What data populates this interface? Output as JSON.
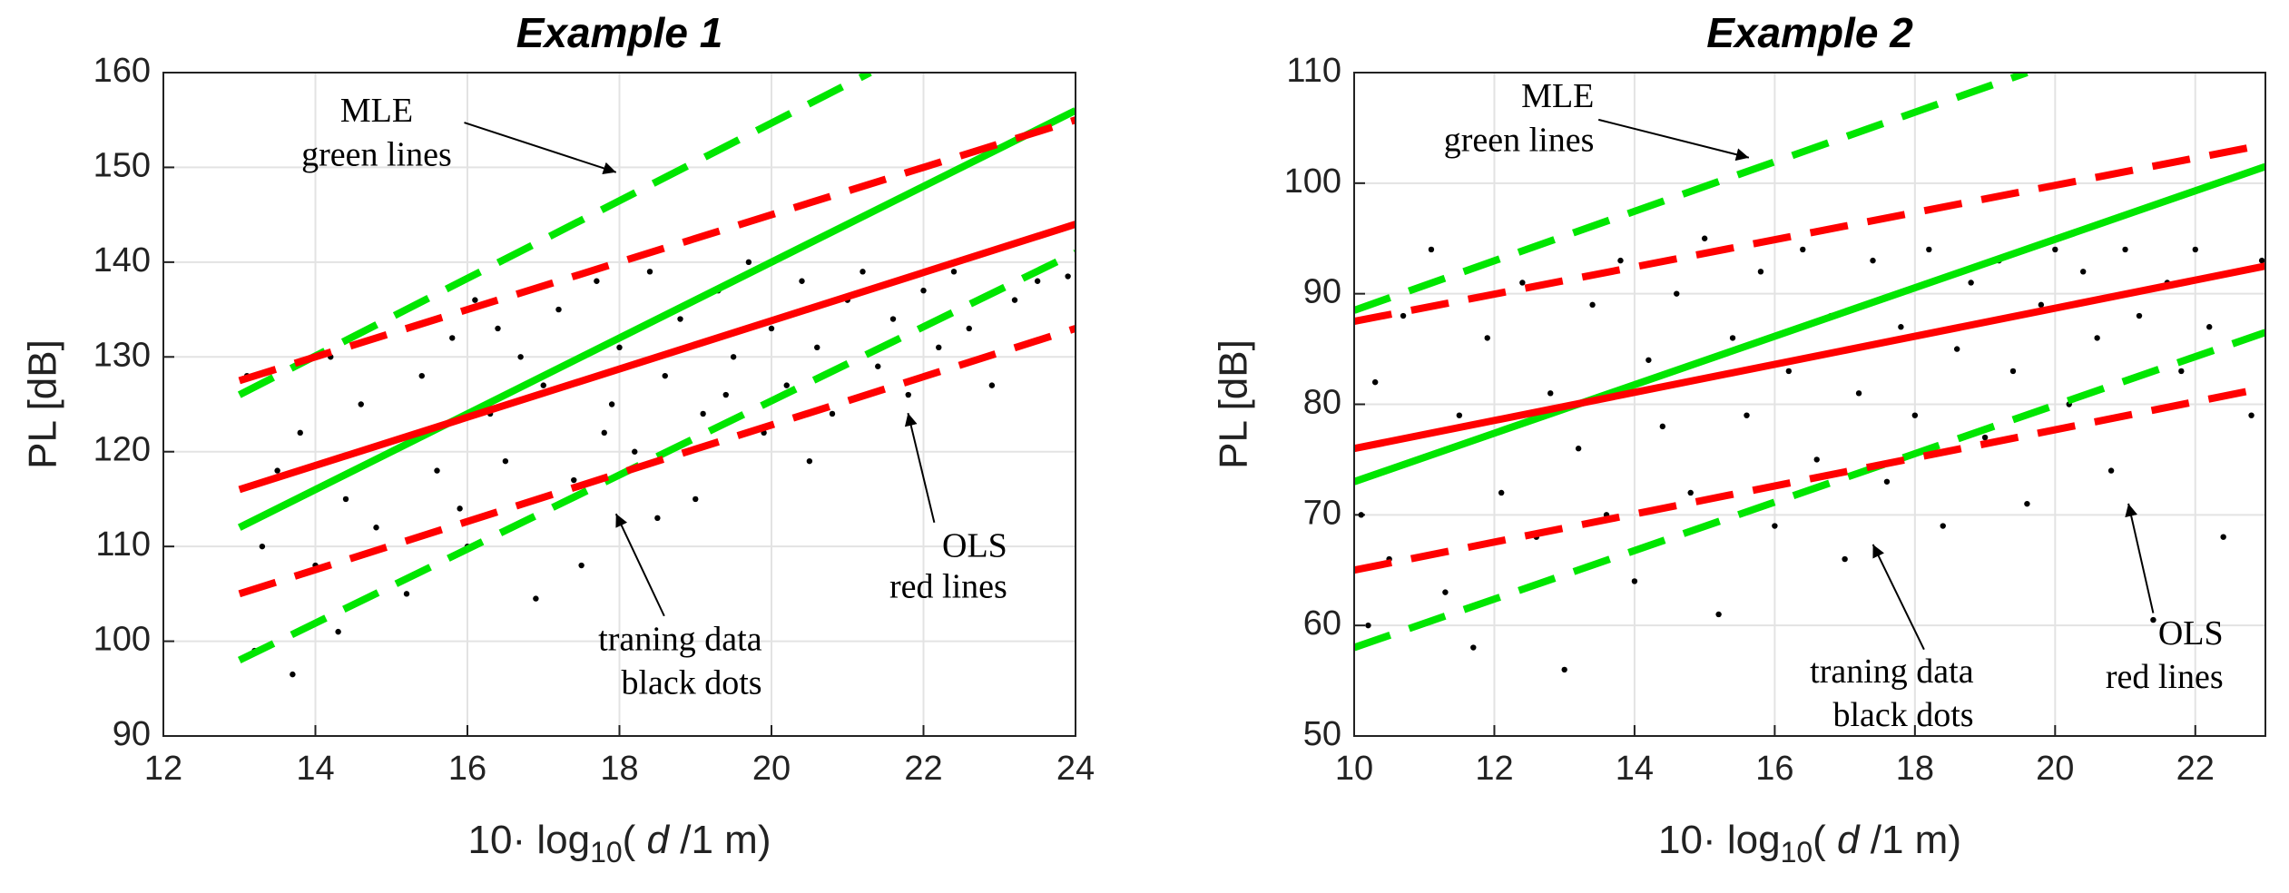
{
  "chart_data": [
    {
      "type": "scatter",
      "title": "Example 1",
      "y_label": "PL [dB]",
      "x_label_parts": [
        "10· log",
        "10",
        "( ",
        "d",
        " /1 m)"
      ],
      "xlim": [
        12,
        24
      ],
      "xticks": [
        12,
        14,
        16,
        18,
        20,
        22,
        24
      ],
      "ylim": [
        90,
        160
      ],
      "yticks": [
        90,
        100,
        110,
        120,
        130,
        140,
        150,
        160
      ],
      "grid": true,
      "annotations": [
        [
          "MLE",
          "green lines"
        ],
        [
          "traning data",
          "black dots"
        ],
        [
          "OLS",
          "red lines"
        ]
      ],
      "series": [
        {
          "type": "scatter",
          "color": "#000000",
          "x": [
            13.1,
            13.2,
            13.3,
            13.5,
            13.7,
            13.8,
            14.0,
            14.2,
            14.4,
            14.6,
            14.8,
            15.0,
            15.2,
            15.4,
            15.6,
            15.8,
            16.0,
            16.1,
            16.3,
            16.5,
            16.7,
            16.9,
            17.0,
            17.2,
            17.4,
            17.5,
            17.7,
            17.9,
            18.0,
            18.2,
            18.4,
            18.6,
            18.8,
            19.0,
            19.1,
            19.3,
            19.5,
            19.7,
            19.9,
            20.0,
            20.2,
            20.4,
            20.6,
            20.8,
            21.0,
            21.2,
            21.4,
            21.6,
            21.8,
            22.0,
            22.2,
            22.4,
            22.6,
            22.9,
            23.2,
            23.5,
            23.9,
            20.5,
            18.5,
            17.8,
            19.4,
            15.9,
            14.3,
            16.4
          ],
          "values": [
            128,
            99,
            110,
            118,
            96.5,
            122,
            108,
            130,
            115,
            125,
            112,
            120,
            105,
            128,
            118,
            132,
            110,
            136,
            124,
            119,
            130,
            104.5,
            127,
            135,
            117,
            108,
            138,
            125,
            131,
            120,
            139,
            128,
            134,
            115,
            124,
            137,
            130,
            140,
            122,
            133,
            127,
            138,
            131,
            124,
            136,
            139,
            129,
            134,
            126,
            137,
            131,
            139,
            133,
            127,
            136,
            138,
            138.5,
            119,
            113,
            122,
            126,
            114,
            101,
            133
          ]
        },
        {
          "type": "line",
          "color": "#00e600",
          "dash": false,
          "x": [
            13,
            24
          ],
          "values": [
            112,
            156
          ]
        },
        {
          "type": "line",
          "color": "#ff0000",
          "dash": false,
          "x": [
            13,
            24
          ],
          "values": [
            116,
            144
          ]
        },
        {
          "type": "line",
          "color": "#00e600",
          "dash": true,
          "x": [
            13,
            21.3
          ],
          "values": [
            126,
            160
          ]
        },
        {
          "type": "line",
          "color": "#ff0000",
          "dash": true,
          "x": [
            13,
            24
          ],
          "values": [
            127.5,
            155
          ]
        },
        {
          "type": "line",
          "color": "#00e600",
          "dash": true,
          "x": [
            13,
            24
          ],
          "values": [
            98,
            141
          ]
        },
        {
          "type": "line",
          "color": "#ff0000",
          "dash": true,
          "x": [
            13,
            24
          ],
          "values": [
            105,
            133
          ]
        }
      ]
    },
    {
      "type": "scatter",
      "title": "Example 2",
      "y_label": "PL [dB]",
      "x_label_parts": [
        "10· log",
        "10",
        "( ",
        "d",
        " /1 m)"
      ],
      "xlim": [
        10,
        23
      ],
      "xticks": [
        10,
        12,
        14,
        16,
        18,
        20,
        22
      ],
      "ylim": [
        50,
        110
      ],
      "yticks": [
        50,
        60,
        70,
        80,
        90,
        100,
        110
      ],
      "grid": true,
      "annotations": [
        [
          "MLE",
          "green lines"
        ],
        [
          "traning data",
          "black dots"
        ],
        [
          "OLS",
          "red lines"
        ]
      ],
      "series": [
        {
          "type": "scatter",
          "color": "#000000",
          "x": [
            10.1,
            10.2,
            10.3,
            10.5,
            10.7,
            10.9,
            11.1,
            11.3,
            11.5,
            11.7,
            11.9,
            12.1,
            12.4,
            12.6,
            12.8,
            13.0,
            13.2,
            13.4,
            13.6,
            13.8,
            14.0,
            14.2,
            14.4,
            14.6,
            14.8,
            15.0,
            15.2,
            15.4,
            15.6,
            15.8,
            16.0,
            16.2,
            16.4,
            16.6,
            16.8,
            17.0,
            17.2,
            17.4,
            17.6,
            17.8,
            18.0,
            18.2,
            18.4,
            18.6,
            18.8,
            19.0,
            19.2,
            19.4,
            19.6,
            19.8,
            20.0,
            20.2,
            20.4,
            20.6,
            20.8,
            21.0,
            21.2,
            21.4,
            21.6,
            21.8,
            22.0,
            22.2,
            22.4,
            22.6,
            22.8,
            22.95
          ],
          "values": [
            70,
            60,
            82,
            66,
            88,
            75,
            94,
            63,
            79,
            58,
            86,
            72,
            91,
            68,
            81,
            56,
            76,
            89,
            70,
            93,
            64,
            84,
            78,
            90,
            72,
            95,
            61,
            86,
            79,
            92,
            69,
            83,
            94,
            75,
            88,
            66,
            81,
            93,
            73,
            87,
            79,
            94,
            69,
            85,
            91,
            77,
            93,
            83,
            71,
            89,
            94,
            80,
            92,
            86,
            74,
            94,
            88,
            60.5,
            91,
            83,
            94,
            87,
            68,
            92,
            79,
            93
          ]
        },
        {
          "type": "line",
          "color": "#00e600",
          "dash": false,
          "x": [
            10,
            23
          ],
          "values": [
            73,
            101.5
          ]
        },
        {
          "type": "line",
          "color": "#ff0000",
          "dash": false,
          "x": [
            10,
            23
          ],
          "values": [
            76,
            92.5
          ]
        },
        {
          "type": "line",
          "color": "#00e600",
          "dash": true,
          "x": [
            10,
            19.6
          ],
          "values": [
            88.5,
            110
          ]
        },
        {
          "type": "line",
          "color": "#ff0000",
          "dash": true,
          "x": [
            10,
            23
          ],
          "values": [
            87.5,
            103.5
          ]
        },
        {
          "type": "line",
          "color": "#00e600",
          "dash": true,
          "x": [
            10,
            23
          ],
          "values": [
            58,
            86.5
          ]
        },
        {
          "type": "line",
          "color": "#ff0000",
          "dash": true,
          "x": [
            10,
            23
          ],
          "values": [
            65,
            81.5
          ]
        }
      ]
    }
  ]
}
